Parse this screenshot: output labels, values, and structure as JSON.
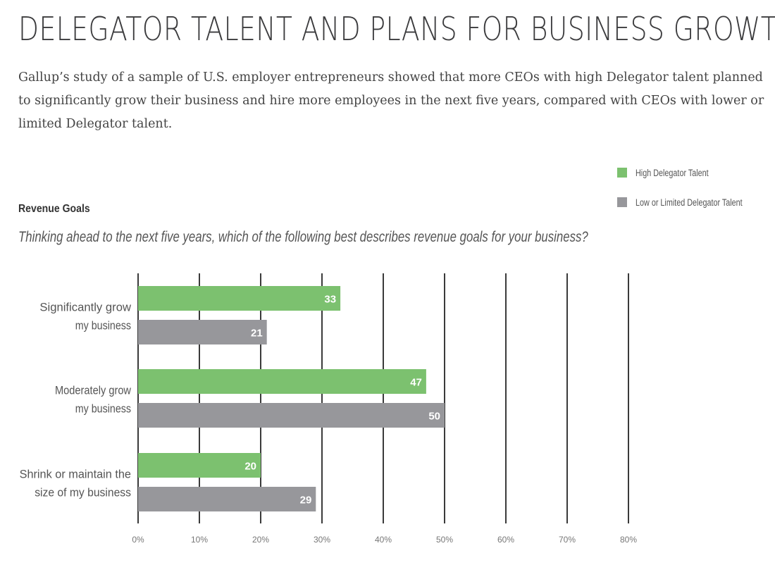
{
  "header": {
    "title": "DELEGATOR TALENT AND PLANS FOR BUSINESS GROWTH",
    "intro": "Gallup’s study of a sample of U.S. employer entrepreneurs showed that more CEOs with high Delegator talent planned to significantly grow their business and hire more employees in the next five years, compared with CEOs with lower or limited Delegator talent."
  },
  "section": {
    "title": "Revenue Goals",
    "question": "Thinking ahead to the next five years, which of the following best describes revenue goals for your business?"
  },
  "colors": {
    "high": "#7cc16f",
    "low": "#97979b",
    "gridline": "#3a3a3a",
    "label_text": "#ffffff"
  },
  "chart_data": {
    "type": "bar",
    "orientation": "horizontal",
    "categories": [
      [
        "Significantly grow",
        "my business"
      ],
      [
        "Moderately grow",
        "my business"
      ],
      [
        "Shrink or maintain the",
        "size of my business"
      ]
    ],
    "series": [
      {
        "name": "High Delegator Talent",
        "values": [
          33,
          47,
          20
        ]
      },
      {
        "name": "Low or Limited Delegator Talent",
        "values": [
          21,
          50,
          29
        ]
      }
    ],
    "xlim": [
      0,
      80
    ],
    "x_ticks": [
      "0%",
      "10%",
      "20%",
      "30%",
      "40%",
      "50%",
      "60%",
      "70%",
      "80%"
    ],
    "grid": true,
    "legend_position": "top-right"
  }
}
